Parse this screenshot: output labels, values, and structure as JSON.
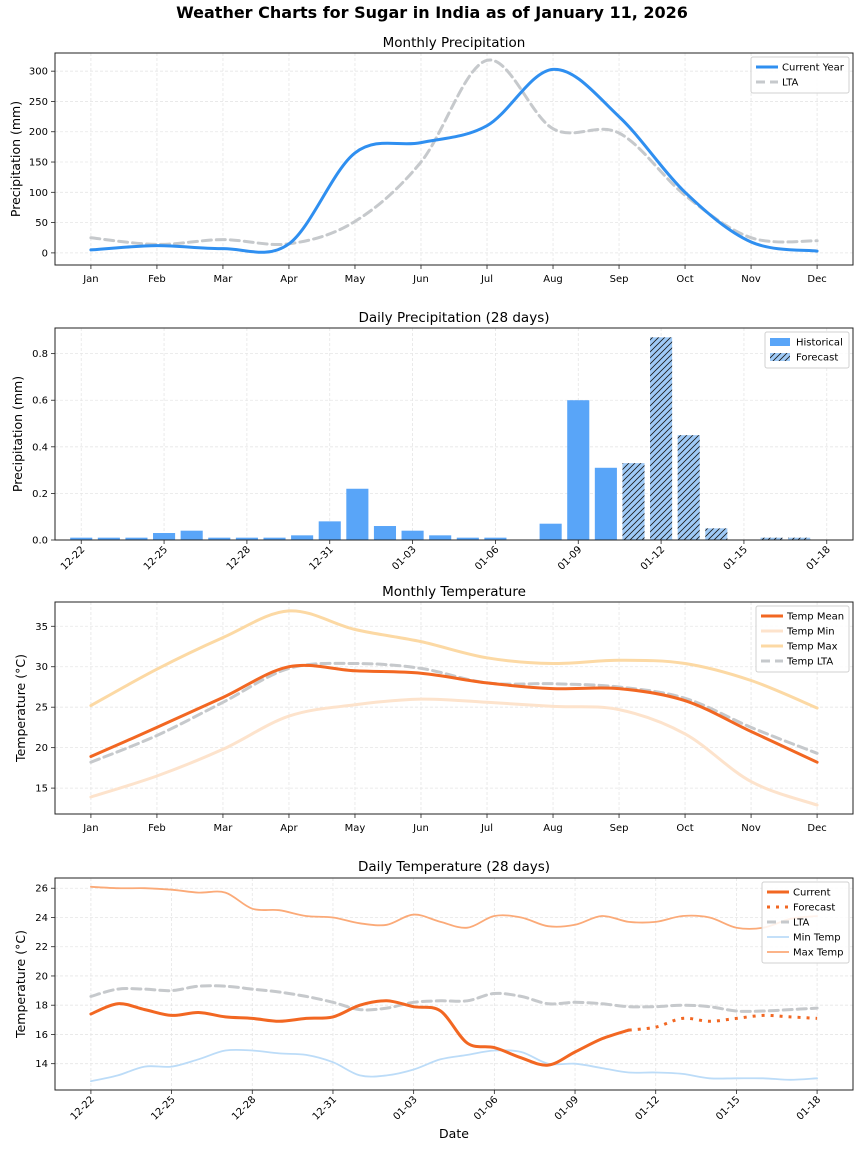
{
  "suptitle": "Weather Charts for Sugar in India as of January 11, 2026",
  "colors": {
    "current_blue": "#2f8ff0",
    "lta_gray": "#c6c9cc",
    "bar_hist": "#59a5f8",
    "bar_fore": "#9fcaf7",
    "temp_mean": "#f26722",
    "temp_min": "#fde3cc",
    "temp_max": "#fcd9a4",
    "daily_max": "#fbaa78",
    "daily_min": "#bcdcf8",
    "axis": "#222222",
    "grid": "#e6e6e6"
  },
  "chart_data": [
    {
      "id": "monthly-precip",
      "type": "line",
      "title": "Monthly Precipitation",
      "xlabel": "",
      "ylabel": "Precipitation (mm)",
      "categories": [
        "Jan",
        "Feb",
        "Mar",
        "Apr",
        "May",
        "Jun",
        "Jul",
        "Aug",
        "Sep",
        "Oct",
        "Nov",
        "Dec"
      ],
      "ylim": [
        -20,
        330
      ],
      "yticks": [
        0,
        50,
        100,
        150,
        200,
        250,
        300
      ],
      "grid": true,
      "legend": "top-right",
      "series": [
        {
          "name": "Current Year",
          "style": "solid",
          "color": "#2f8ff0",
          "values": [
            5,
            12,
            7,
            15,
            165,
            182,
            210,
            303,
            225,
            100,
            18,
            3
          ]
        },
        {
          "name": "LTA",
          "style": "dashed",
          "color": "#c6c9cc",
          "values": [
            25,
            14,
            22,
            15,
            52,
            150,
            318,
            205,
            198,
            95,
            25,
            20
          ]
        }
      ]
    },
    {
      "id": "daily-precip",
      "type": "bar",
      "title": "Daily Precipitation (28 days)",
      "xlabel": "",
      "ylabel": "Precipitation (mm)",
      "categories": [
        "12-22",
        "12-23",
        "12-24",
        "12-25",
        "12-26",
        "12-27",
        "12-28",
        "12-29",
        "12-30",
        "12-31",
        "01-01",
        "01-02",
        "01-03",
        "01-04",
        "01-05",
        "01-06",
        "01-07",
        "01-08",
        "01-09",
        "01-10",
        "01-11",
        "01-12",
        "01-13",
        "01-14",
        "01-15",
        "01-16",
        "01-17",
        "01-18"
      ],
      "tick_labels": [
        "12-22",
        "12-25",
        "12-28",
        "12-31",
        "01-03",
        "01-06",
        "01-09",
        "01-12",
        "01-15",
        "01-18"
      ],
      "ylim": [
        0,
        0.91
      ],
      "yticks": [
        0.0,
        0.2,
        0.4,
        0.6,
        0.8
      ],
      "grid": true,
      "legend": "top-right",
      "series": [
        {
          "name": "Historical",
          "hatch": false,
          "values": [
            0.01,
            0.01,
            0.01,
            0.03,
            0.04,
            0.01,
            0.01,
            0.01,
            0.02,
            0.08,
            0.22,
            0.06,
            0.04,
            0.02,
            0.01,
            0.01,
            0,
            0.07,
            0.6,
            0.31,
            null,
            null,
            null,
            null,
            null,
            null,
            null,
            null
          ]
        },
        {
          "name": "Forecast",
          "hatch": true,
          "values": [
            null,
            null,
            null,
            null,
            null,
            null,
            null,
            null,
            null,
            null,
            null,
            null,
            null,
            null,
            null,
            null,
            null,
            null,
            null,
            null,
            0.33,
            0.87,
            0.45,
            0.05,
            0,
            0.01,
            0.01,
            0
          ]
        }
      ]
    },
    {
      "id": "monthly-temp",
      "type": "line",
      "title": "Monthly Temperature",
      "xlabel": "",
      "ylabel": "Temperature (°C)",
      "categories": [
        "Jan",
        "Feb",
        "Mar",
        "Apr",
        "May",
        "Jun",
        "Jul",
        "Aug",
        "Sep",
        "Oct",
        "Nov",
        "Dec"
      ],
      "ylim": [
        11.8,
        38.0
      ],
      "yticks": [
        15,
        20,
        25,
        30,
        35
      ],
      "grid": true,
      "legend": "top-right",
      "series": [
        {
          "name": "Temp Mean",
          "style": "solid",
          "color": "#f26722",
          "values": [
            18.9,
            22.5,
            26.2,
            30.0,
            29.5,
            29.2,
            28.0,
            27.3,
            27.3,
            25.8,
            22.0,
            18.2
          ]
        },
        {
          "name": "Temp Min",
          "style": "solid",
          "color": "#fde3cc",
          "values": [
            13.9,
            16.5,
            19.8,
            23.9,
            25.3,
            26.0,
            25.6,
            25.1,
            24.7,
            21.7,
            15.8,
            12.9
          ]
        },
        {
          "name": "Temp Max",
          "style": "solid",
          "color": "#fcd9a4",
          "values": [
            25.2,
            29.7,
            33.6,
            36.9,
            34.6,
            33.1,
            31.1,
            30.4,
            30.8,
            30.4,
            28.3,
            24.9
          ]
        },
        {
          "name": "Temp LTA",
          "style": "dashed",
          "color": "#c6c9cc",
          "values": [
            18.2,
            21.5,
            25.6,
            29.8,
            30.4,
            29.8,
            28.0,
            27.9,
            27.5,
            26.1,
            22.5,
            19.3
          ]
        }
      ]
    },
    {
      "id": "daily-temp",
      "type": "line",
      "title": "Daily Temperature (28 days)",
      "xlabel": "Date",
      "ylabel": "Temperature (°C)",
      "categories": [
        "12-22",
        "12-23",
        "12-24",
        "12-25",
        "12-26",
        "12-27",
        "12-28",
        "12-29",
        "12-30",
        "12-31",
        "01-01",
        "01-02",
        "01-03",
        "01-04",
        "01-05",
        "01-06",
        "01-07",
        "01-08",
        "01-09",
        "01-10",
        "01-11",
        "01-12",
        "01-13",
        "01-14",
        "01-15",
        "01-16",
        "01-17",
        "01-18"
      ],
      "tick_labels": [
        "12-22",
        "12-25",
        "12-28",
        "12-31",
        "01-03",
        "01-06",
        "01-09",
        "01-12",
        "01-15",
        "01-18"
      ],
      "ylim": [
        12.2,
        26.7
      ],
      "yticks": [
        14,
        16,
        18,
        20,
        22,
        24,
        26
      ],
      "grid": true,
      "legend": "top-right",
      "series": [
        {
          "name": "Current",
          "style": "solid",
          "color": "#f26722",
          "values": [
            17.4,
            18.1,
            17.7,
            17.3,
            17.5,
            17.2,
            17.1,
            16.9,
            17.1,
            17.2,
            18.0,
            18.3,
            17.9,
            17.6,
            15.4,
            15.1,
            14.4,
            13.9,
            14.8,
            15.7,
            16.3,
            null,
            null,
            null,
            null,
            null,
            null,
            null
          ]
        },
        {
          "name": "Forecast",
          "style": "dotted",
          "color": "#f26722",
          "values": [
            null,
            null,
            null,
            null,
            null,
            null,
            null,
            null,
            null,
            null,
            null,
            null,
            null,
            null,
            null,
            null,
            null,
            null,
            null,
            null,
            16.3,
            16.5,
            17.1,
            16.9,
            17.1,
            17.3,
            17.2,
            17.1
          ]
        },
        {
          "name": "LTA",
          "style": "dashed",
          "color": "#c6c9cc",
          "values": [
            18.6,
            19.1,
            19.1,
            19.0,
            19.3,
            19.3,
            19.1,
            18.9,
            18.6,
            18.2,
            17.7,
            17.8,
            18.2,
            18.3,
            18.3,
            18.8,
            18.6,
            18.1,
            18.2,
            18.1,
            17.9,
            17.9,
            18.0,
            17.9,
            17.6,
            17.6,
            17.7,
            17.8
          ]
        },
        {
          "name": "Min Temp",
          "style": "solid",
          "color": "#bcdcf8",
          "values": [
            12.8,
            13.2,
            13.8,
            13.8,
            14.3,
            14.9,
            14.9,
            14.7,
            14.6,
            14.1,
            13.2,
            13.2,
            13.6,
            14.3,
            14.6,
            14.9,
            14.8,
            14.0,
            14.0,
            13.7,
            13.4,
            13.4,
            13.3,
            13.0,
            13.0,
            13.0,
            12.9,
            13.0
          ]
        },
        {
          "name": "Max Temp",
          "style": "solid",
          "color": "#fbaa78",
          "values": [
            26.1,
            26.0,
            26.0,
            25.9,
            25.7,
            25.7,
            24.6,
            24.5,
            24.1,
            24.0,
            23.6,
            23.5,
            24.2,
            23.7,
            23.3,
            24.1,
            24.0,
            23.4,
            23.5,
            24.1,
            23.7,
            23.7,
            24.1,
            24.0,
            23.3,
            23.3,
            23.9,
            24.1
          ]
        }
      ]
    }
  ]
}
